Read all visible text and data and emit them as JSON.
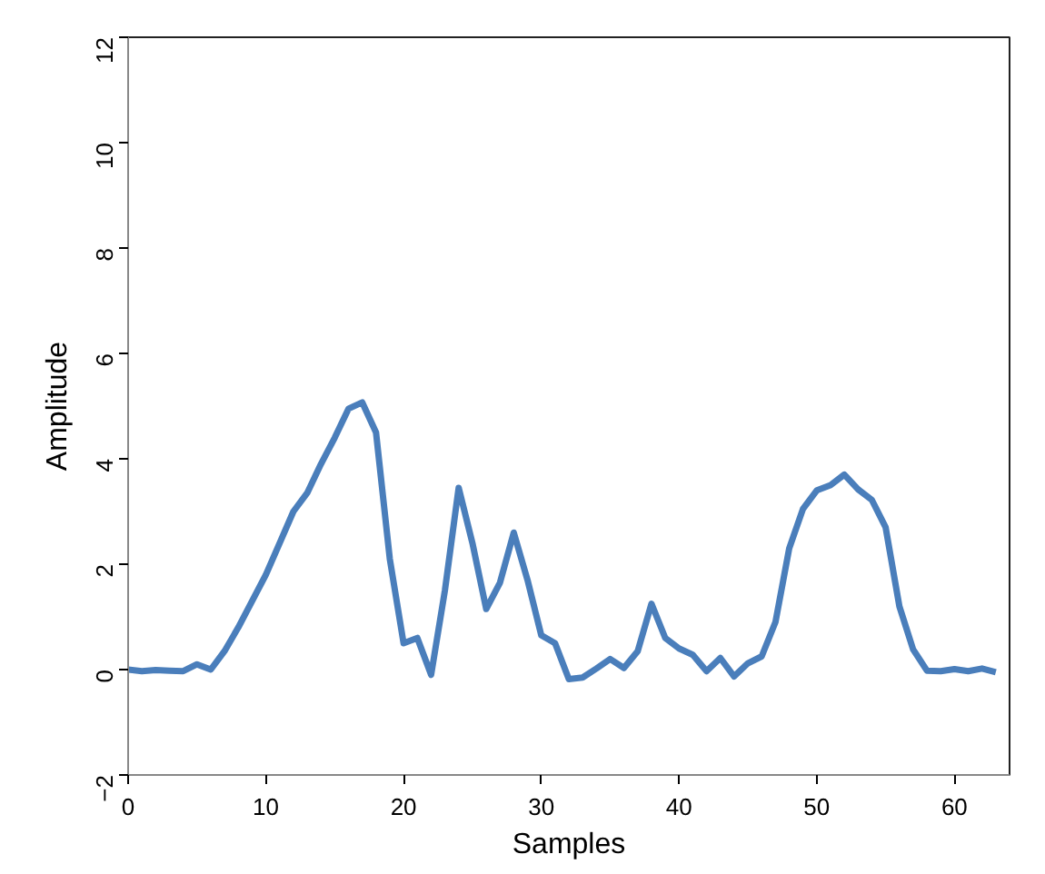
{
  "chart_data": {
    "type": "line",
    "xlabel": "Samples",
    "ylabel": "Amplitude",
    "x": [
      0,
      1,
      2,
      3,
      4,
      5,
      6,
      7,
      8,
      9,
      10,
      11,
      12,
      13,
      14,
      15,
      16,
      17,
      18,
      19,
      20,
      21,
      22,
      23,
      24,
      25,
      26,
      27,
      28,
      29,
      30,
      31,
      32,
      33,
      34,
      35,
      36,
      37,
      38,
      39,
      40,
      41,
      42,
      43,
      44,
      45,
      46,
      47,
      48,
      49,
      50,
      51,
      52,
      53,
      54,
      55,
      56,
      57,
      58,
      59,
      60,
      61,
      62,
      63
    ],
    "series": [
      {
        "color": "#4a7ebb",
        "values": [
          0,
          -0.03,
          -0.01,
          -0.02,
          -0.03,
          0.1,
          0,
          0.35,
          0.8,
          1.3,
          1.8,
          2.4,
          3.0,
          3.35,
          3.9,
          4.4,
          4.95,
          5.07,
          4.5,
          2.1,
          0.5,
          0.6,
          -0.1,
          1.5,
          3.45,
          2.4,
          1.15,
          1.65,
          2.6,
          1.7,
          0.65,
          0.5,
          -0.18,
          -0.15,
          0.02,
          0.2,
          0.03,
          0.35,
          1.25,
          0.6,
          0.4,
          0.28,
          -0.03,
          0.22,
          -0.13,
          0.12,
          0.25,
          0.9,
          2.3,
          3.05,
          3.4,
          3.5,
          3.7,
          3.42,
          3.22,
          2.7,
          1.2,
          0.38,
          -0.02,
          -0.03,
          0.01,
          -0.03,
          0.02,
          -0.05
        ]
      }
    ],
    "xlim": [
      0,
      64
    ],
    "xticks": [
      0,
      10,
      20,
      30,
      40,
      50,
      60
    ],
    "ylim": [
      -2,
      12
    ],
    "yticks": [
      -2,
      0,
      2,
      4,
      6,
      8,
      10,
      12
    ],
    "marker": "none",
    "line_style": "solid"
  }
}
